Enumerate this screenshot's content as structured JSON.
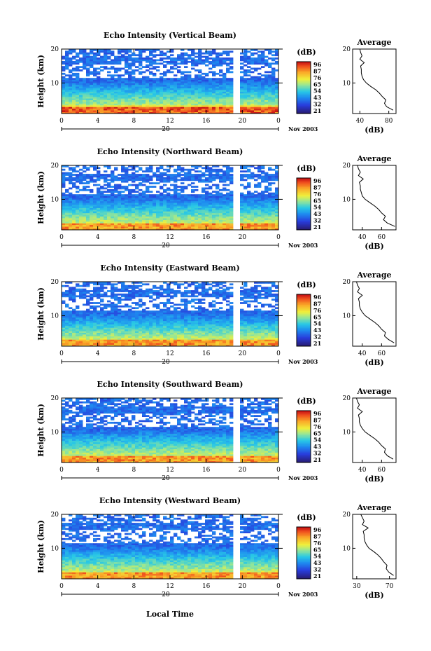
{
  "figure": {
    "bottom_xlabel": "Local Time",
    "date_label": "Nov 2003",
    "day_label": "20"
  },
  "chart_data": [
    {
      "type": "heatmap",
      "title": "Echo Intensity (Vertical Beam)",
      "ylabel": "Height (km)",
      "x_ticks": [
        "0",
        "4",
        "8",
        "12",
        "16",
        "20",
        "0"
      ],
      "y_ticks": [
        "20",
        "10"
      ],
      "xlim": [
        0,
        24
      ],
      "ylim": [
        1,
        20
      ],
      "colorbar": {
        "unit": "(dB)",
        "ticks": [
          "96",
          "87",
          "76",
          "65",
          "54",
          "43",
          "32",
          "21"
        ]
      },
      "data_gaps_hours": [
        [
          19.0,
          19.6
        ]
      ],
      "profile": {
        "title": "Average",
        "xlabel": "(dB)",
        "x_ticks": [
          "40",
          "80"
        ],
        "xlim": [
          30,
          90
        ],
        "y_ticks": [
          "20",
          "10"
        ],
        "height_km": [
          2,
          3,
          4,
          5,
          6,
          7,
          8,
          9,
          10,
          11,
          12,
          13,
          14,
          15,
          16,
          17,
          18,
          19,
          20
        ],
        "db": [
          86,
          77,
          74,
          76,
          71,
          67,
          62,
          55,
          49,
          45,
          43,
          42,
          42,
          41,
          46,
          40,
          43,
          41,
          40
        ]
      }
    },
    {
      "type": "heatmap",
      "title": "Echo Intensity (Northward Beam)",
      "ylabel": "Height (km)",
      "x_ticks": [
        "0",
        "4",
        "8",
        "12",
        "16",
        "20",
        "0"
      ],
      "y_ticks": [
        "20",
        "10"
      ],
      "xlim": [
        0,
        24
      ],
      "ylim": [
        1,
        20
      ],
      "colorbar": {
        "unit": "(dB)",
        "ticks": [
          "96",
          "87",
          "76",
          "65",
          "54",
          "43",
          "32",
          "21"
        ]
      },
      "data_gaps_hours": [
        [
          19.0,
          19.6
        ]
      ],
      "profile": {
        "title": "Average",
        "xlabel": "(dB)",
        "x_ticks": [
          "40",
          "60"
        ],
        "xlim": [
          30,
          75
        ],
        "y_ticks": [
          "20",
          "10"
        ],
        "height_km": [
          2,
          3,
          4,
          5,
          6,
          7,
          8,
          9,
          10,
          11,
          12,
          13,
          14,
          15,
          16,
          17,
          18,
          19,
          20
        ],
        "db": [
          74,
          66,
          62,
          64,
          60,
          57,
          53,
          48,
          43,
          40,
          39,
          38,
          38,
          37,
          41,
          36,
          38,
          36,
          35
        ]
      }
    },
    {
      "type": "heatmap",
      "title": "Echo Intensity (Eastward Beam)",
      "ylabel": "Height (km)",
      "x_ticks": [
        "0",
        "4",
        "8",
        "12",
        "16",
        "20",
        "0"
      ],
      "y_ticks": [
        "20",
        "10"
      ],
      "xlim": [
        0,
        24
      ],
      "ylim": [
        1,
        20
      ],
      "colorbar": {
        "unit": "(dB)",
        "ticks": [
          "96",
          "87",
          "76",
          "65",
          "54",
          "43",
          "32",
          "21"
        ]
      },
      "data_gaps_hours": [
        [
          19.0,
          19.6
        ]
      ],
      "profile": {
        "title": "Average",
        "xlabel": "(dB)",
        "x_ticks": [
          "40",
          "60"
        ],
        "xlim": [
          30,
          75
        ],
        "y_ticks": [
          "20",
          "10"
        ],
        "height_km": [
          2,
          3,
          4,
          5,
          6,
          7,
          8,
          9,
          10,
          11,
          12,
          13,
          14,
          15,
          16,
          17,
          18,
          19,
          20
        ],
        "db": [
          73,
          67,
          63,
          64,
          60,
          57,
          53,
          48,
          43,
          40,
          38,
          37,
          37,
          36,
          40,
          35,
          37,
          35,
          34
        ]
      }
    },
    {
      "type": "heatmap",
      "title": "Echo Intensity (Southward Beam)",
      "ylabel": "Height (km)",
      "x_ticks": [
        "0",
        "4",
        "8",
        "12",
        "16",
        "20",
        "0"
      ],
      "y_ticks": [
        "20",
        "10"
      ],
      "xlim": [
        0,
        24
      ],
      "ylim": [
        1,
        20
      ],
      "colorbar": {
        "unit": "(dB)",
        "ticks": [
          "96",
          "87",
          "76",
          "65",
          "54",
          "43",
          "32",
          "21"
        ]
      },
      "data_gaps_hours": [
        [
          19.0,
          19.6
        ]
      ],
      "profile": {
        "title": "Average",
        "xlabel": "(dB)",
        "x_ticks": [
          "40",
          "60"
        ],
        "xlim": [
          30,
          75
        ],
        "y_ticks": [
          "20",
          "10"
        ],
        "height_km": [
          2,
          3,
          4,
          5,
          6,
          7,
          8,
          9,
          10,
          11,
          12,
          13,
          14,
          15,
          16,
          17,
          18,
          19,
          20
        ],
        "db": [
          72,
          66,
          63,
          64,
          60,
          57,
          53,
          48,
          43,
          40,
          38,
          37,
          37,
          36,
          40,
          35,
          37,
          35,
          34
        ]
      }
    },
    {
      "type": "heatmap",
      "title": "Echo Intensity (Westward Beam)",
      "ylabel": "Height (km)",
      "x_ticks": [
        "0",
        "4",
        "8",
        "12",
        "16",
        "20",
        "0"
      ],
      "y_ticks": [
        "20",
        "10"
      ],
      "xlim": [
        0,
        24
      ],
      "ylim": [
        1,
        20
      ],
      "colorbar": {
        "unit": "(dB)",
        "ticks": [
          "96",
          "87",
          "76",
          "65",
          "54",
          "43",
          "32",
          "21"
        ]
      },
      "data_gaps_hours": [
        [
          19.0,
          19.6
        ]
      ],
      "profile": {
        "title": "Average",
        "xlabel": "(dB)",
        "x_ticks": [
          "30",
          "70"
        ],
        "xlim": [
          25,
          78
        ],
        "y_ticks": [
          "20",
          "10"
        ],
        "height_km": [
          2,
          3,
          4,
          5,
          6,
          7,
          8,
          9,
          10,
          11,
          12,
          13,
          14,
          15,
          16,
          17,
          18,
          19,
          20
        ],
        "db": [
          75,
          69,
          66,
          67,
          63,
          60,
          56,
          51,
          45,
          42,
          40,
          39,
          39,
          38,
          44,
          37,
          39,
          37,
          35
        ]
      }
    }
  ]
}
